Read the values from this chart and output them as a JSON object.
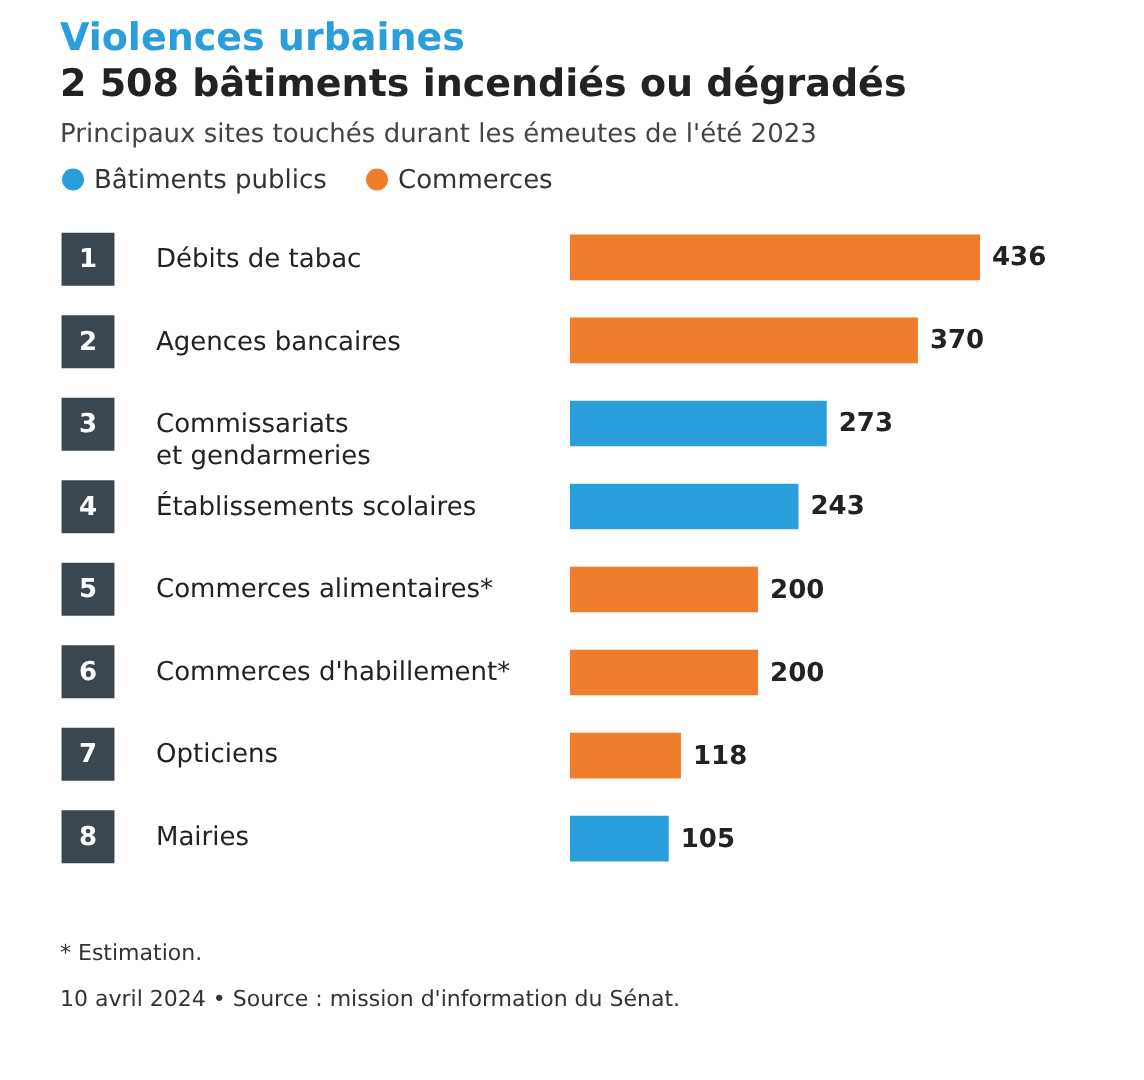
{
  "chart_data": {
    "type": "bar",
    "orientation": "horizontal",
    "title": "Violences urbaines",
    "subtitle": "2 508 bâtiments incendiés ou dégradés",
    "categories": [
      "Débits de tabac",
      "Agences bancaires",
      "Commissariats et gendarmeries",
      "Établissements scolaires",
      "Commerces alimentaires*",
      "Commerces d'habillement*",
      "Opticiens",
      "Mairies"
    ],
    "series": [
      {
        "name": "Bâtiments publics",
        "color": "#2a9edb",
        "values": [
          null,
          null,
          273,
          243,
          null,
          null,
          null,
          105
        ]
      },
      {
        "name": "Commerces",
        "color": "#f07d2b",
        "values": [
          436,
          370,
          null,
          null,
          200,
          200,
          118,
          null
        ]
      }
    ],
    "data_labels": true,
    "legend": "top left",
    "annotations": [
      "Principaux sites touchés durant les émeutes de l'été 2023",
      "1",
      "2",
      "3",
      "4",
      "5",
      "6",
      "7",
      "8",
      "* Estimation.",
      "10 avril 2024 • Source : mission d'information du Sénat."
    ]
  }
}
